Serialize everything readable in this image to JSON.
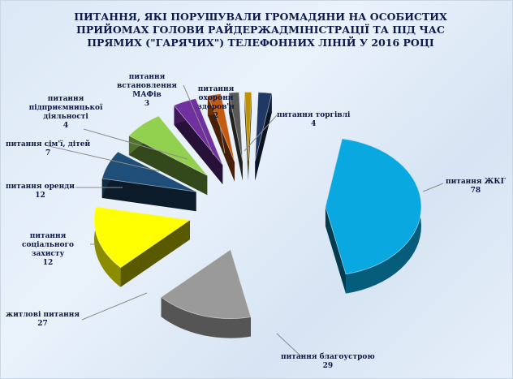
{
  "chart_data": {
    "type": "pie",
    "title": "ПИТАННЯ,  ЯКІ ПОРУШУВАЛИ  ГРОМАДЯНИ  НА ОСОБИСТИХ ПРИЙОМАХ  ГОЛОВИ РАЙДЕРЖАДМІНІСТРАЦІЇ  ТА ПІД ЧАС ПРЯМИХ  (\"ГАРЯЧИХ\") ТЕЛЕФОННИХ  ЛІНІЙ У 2016 РОЦІ",
    "style": "3d-exploded",
    "slices": [
      {
        "label": "питання ЖКГ",
        "value": 78,
        "color": "#0aa8e0"
      },
      {
        "label": "питання благоустрою",
        "value": 29,
        "color": "#9a9a9a"
      },
      {
        "label": "житлові питання",
        "value": 27,
        "color": "#ffff00"
      },
      {
        "label": "питання соціального захисту",
        "value": 12,
        "color": "#1f4e79"
      },
      {
        "label": "питання оренди",
        "value": 12,
        "color": "#92d050"
      },
      {
        "label": "питання сім'ї, дітей",
        "value": 7,
        "color": "#7030a0"
      },
      {
        "label": "питання підприємницької діяльності",
        "value": 4,
        "color": "#c55a11"
      },
      {
        "label": "питання встановлення МАФів",
        "value": 3,
        "color": "#595959"
      },
      {
        "label": "питання охорони здоров'я",
        "value": 2,
        "color": "#bf9000"
      },
      {
        "label": "питання торгівлі",
        "value": 4,
        "color": "#1f3864"
      }
    ]
  }
}
